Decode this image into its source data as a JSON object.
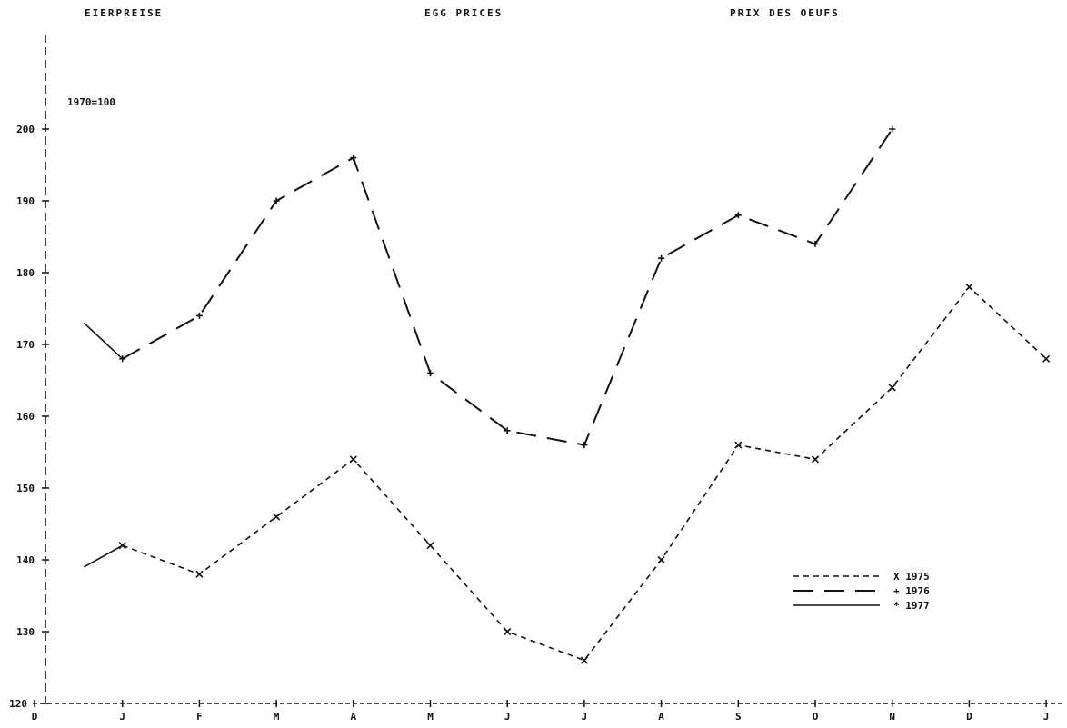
{
  "titles": {
    "de": "EIERPREISE",
    "en": "EGG PRICES",
    "fr": "PRIX DES OEUFS"
  },
  "chart_data": {
    "type": "line",
    "title": "EGG PRICES",
    "index_note": "1970=100",
    "categories": [
      "D",
      "J",
      "F",
      "M",
      "A",
      "M",
      "J",
      "J",
      "A",
      "S",
      "O",
      "N",
      "D",
      "J"
    ],
    "ylim": [
      120,
      210
    ],
    "y_ticks": [
      120,
      130,
      140,
      150,
      160,
      170,
      180,
      190,
      200
    ],
    "grid": false,
    "legend_position": "bottom-right",
    "series": [
      {
        "name": "1975",
        "marker": "X",
        "dash": "short-dashed",
        "values": [
          null,
          142,
          138,
          146,
          154,
          142,
          130,
          126,
          140,
          156,
          154,
          164,
          178,
          168
        ]
      },
      {
        "name": "1976",
        "marker": "+",
        "dash": "long-dashed",
        "values": [
          null,
          168,
          174,
          190,
          196,
          166,
          158,
          156,
          182,
          188,
          184,
          200,
          null,
          null
        ]
      },
      {
        "name": "1977",
        "marker": "*",
        "dash": "solid",
        "values": [
          null,
          null,
          null,
          null,
          null,
          null,
          null,
          null,
          null,
          null,
          null,
          null,
          null,
          null
        ]
      }
    ],
    "connectors": [
      {
        "series": "1977",
        "from": [
          0.5,
          139
        ],
        "to": [
          1,
          142
        ]
      },
      {
        "series": "1977",
        "from": [
          0.5,
          173
        ],
        "to": [
          1,
          168
        ]
      }
    ]
  }
}
